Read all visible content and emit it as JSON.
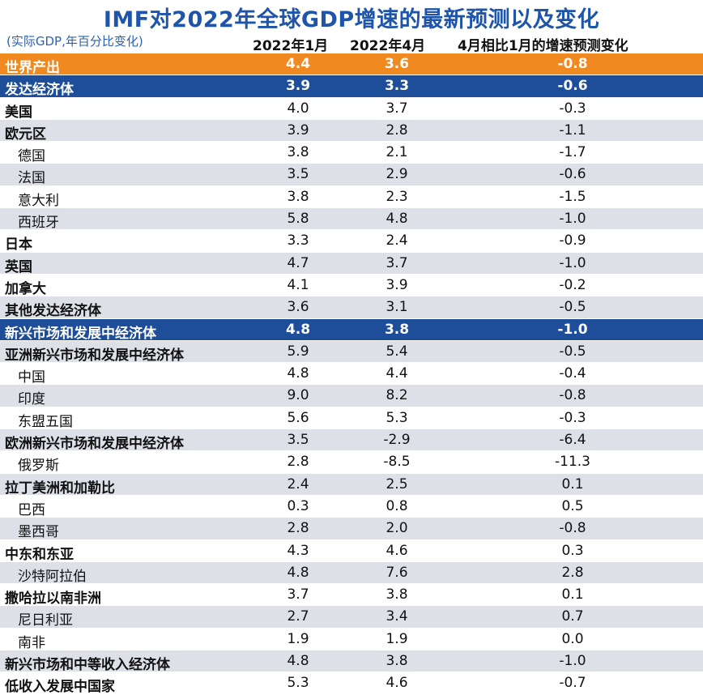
{
  "header": {
    "title": "IMF对2022年全球GDP增速的最新预测以及变化",
    "subtitle": "(实际GDP,年百分比变化)",
    "col_jan": "2022年1月",
    "col_apr": "2022年4月",
    "col_change": "4月相比1月的增速预测变化"
  },
  "colors": {
    "title": "#1f55a8",
    "world_row": "#f0891f",
    "group_row": "#1e4e99",
    "shade_row": "#dde0e7"
  },
  "rows": [
    {
      "name": "世界产出",
      "jan": "4.4",
      "apr": "3.6",
      "change": "-0.8",
      "style": "orange"
    },
    {
      "name": "发达经济体",
      "jan": "3.9",
      "apr": "3.3",
      "change": "-0.6",
      "style": "blue"
    },
    {
      "name": "美国",
      "jan": "4.0",
      "apr": "3.7",
      "change": "-0.3",
      "style": "bold"
    },
    {
      "name": "欧元区",
      "jan": "3.9",
      "apr": "2.8",
      "change": "-1.1",
      "style": "bold"
    },
    {
      "name": "德国",
      "jan": "3.8",
      "apr": "2.1",
      "change": "-1.7",
      "style": "indent"
    },
    {
      "name": "法国",
      "jan": "3.5",
      "apr": "2.9",
      "change": "-0.6",
      "style": "indent"
    },
    {
      "name": "意大利",
      "jan": "3.8",
      "apr": "2.3",
      "change": "-1.5",
      "style": "indent"
    },
    {
      "name": "西班牙",
      "jan": "5.8",
      "apr": "4.8",
      "change": "-1.0",
      "style": "indent"
    },
    {
      "name": "日本",
      "jan": "3.3",
      "apr": "2.4",
      "change": "-0.9",
      "style": "bold"
    },
    {
      "name": "英国",
      "jan": "4.7",
      "apr": "3.7",
      "change": "-1.0",
      "style": "bold"
    },
    {
      "name": "加拿大",
      "jan": "4.1",
      "apr": "3.9",
      "change": "-0.2",
      "style": "bold"
    },
    {
      "name": "其他发达经济体",
      "jan": "3.6",
      "apr": "3.1",
      "change": "-0.5",
      "style": "bold"
    },
    {
      "name": "新兴市场和发展中经济体",
      "jan": "4.8",
      "apr": "3.8",
      "change": "-1.0",
      "style": "blue"
    },
    {
      "name": "亚洲新兴市场和发展中经济体",
      "jan": "5.9",
      "apr": "5.4",
      "change": "-0.5",
      "style": "bold"
    },
    {
      "name": "中国",
      "jan": "4.8",
      "apr": "4.4",
      "change": "-0.4",
      "style": "indent"
    },
    {
      "name": "印度",
      "jan": "9.0",
      "apr": "8.2",
      "change": "-0.8",
      "style": "indent"
    },
    {
      "name": "东盟五国",
      "jan": "5.6",
      "apr": "5.3",
      "change": "-0.3",
      "style": "indent"
    },
    {
      "name": "欧洲新兴市场和发展中经济体",
      "jan": "3.5",
      "apr": "-2.9",
      "change": "-6.4",
      "style": "bold"
    },
    {
      "name": "俄罗斯",
      "jan": "2.8",
      "apr": "-8.5",
      "change": "-11.3",
      "style": "indent"
    },
    {
      "name": "拉丁美洲和加勒比",
      "jan": "2.4",
      "apr": "2.5",
      "change": "0.1",
      "style": "bold"
    },
    {
      "name": "巴西",
      "jan": "0.3",
      "apr": "0.8",
      "change": "0.5",
      "style": "indent"
    },
    {
      "name": "墨西哥",
      "jan": "2.8",
      "apr": "2.0",
      "change": "-0.8",
      "style": "indent"
    },
    {
      "name": "中东和东亚",
      "jan": "4.3",
      "apr": "4.6",
      "change": "0.3",
      "style": "bold"
    },
    {
      "name": "沙特阿拉伯",
      "jan": "4.8",
      "apr": "7.6",
      "change": "2.8",
      "style": "indent"
    },
    {
      "name": "撒哈拉以南非洲",
      "jan": "3.7",
      "apr": "3.8",
      "change": "0.1",
      "style": "bold"
    },
    {
      "name": "尼日利亚",
      "jan": "2.7",
      "apr": "3.4",
      "change": "0.7",
      "style": "indent"
    },
    {
      "name": "南非",
      "jan": "1.9",
      "apr": "1.9",
      "change": "0.0",
      "style": "indent"
    },
    {
      "name": "新兴市场和中等收入经济体",
      "jan": "4.8",
      "apr": "3.8",
      "change": "-1.0",
      "style": "bold"
    },
    {
      "name": "低收入发展中国家",
      "jan": "5.3",
      "apr": "4.6",
      "change": "-0.7",
      "style": "bold"
    }
  ]
}
